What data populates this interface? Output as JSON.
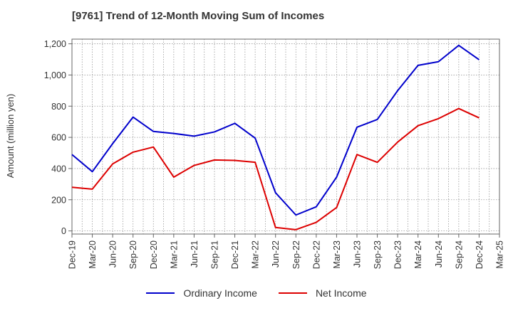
{
  "chart_data": {
    "type": "line",
    "title": "[9761]  Trend of 12-Month Moving Sum of Incomes",
    "xlabel": "",
    "ylabel": "Amount (million yen)",
    "ylim": [
      -20,
      1230
    ],
    "yticks": [
      0,
      200,
      400,
      600,
      800,
      1000,
      1200
    ],
    "ytick_labels": [
      "0",
      "200",
      "400",
      "600",
      "800",
      "1,000",
      "1,200"
    ],
    "categories": [
      "Dec-19",
      "Mar-20",
      "Jun-20",
      "Sep-20",
      "Dec-20",
      "Mar-21",
      "Jun-21",
      "Sep-21",
      "Dec-21",
      "Mar-22",
      "Jun-22",
      "Sep-22",
      "Dec-22",
      "Mar-23",
      "Jun-23",
      "Sep-23",
      "Dec-23",
      "Mar-24",
      "Jun-24",
      "Sep-24",
      "Dec-24",
      "Mar-25"
    ],
    "grid": true,
    "legend_position": "bottom",
    "series": [
      {
        "name": "Ordinary Income",
        "color": "#0000cc",
        "values": [
          490,
          380,
          560,
          730,
          638,
          625,
          608,
          635,
          690,
          595,
          245,
          102,
          155,
          345,
          665,
          715,
          900,
          1062,
          1085,
          1190,
          1098,
          null
        ]
      },
      {
        "name": "Net Income",
        "color": "#dd0000",
        "values": [
          280,
          268,
          430,
          505,
          538,
          345,
          420,
          455,
          452,
          440,
          22,
          8,
          55,
          150,
          490,
          440,
          570,
          675,
          720,
          785,
          725,
          null
        ]
      }
    ]
  }
}
